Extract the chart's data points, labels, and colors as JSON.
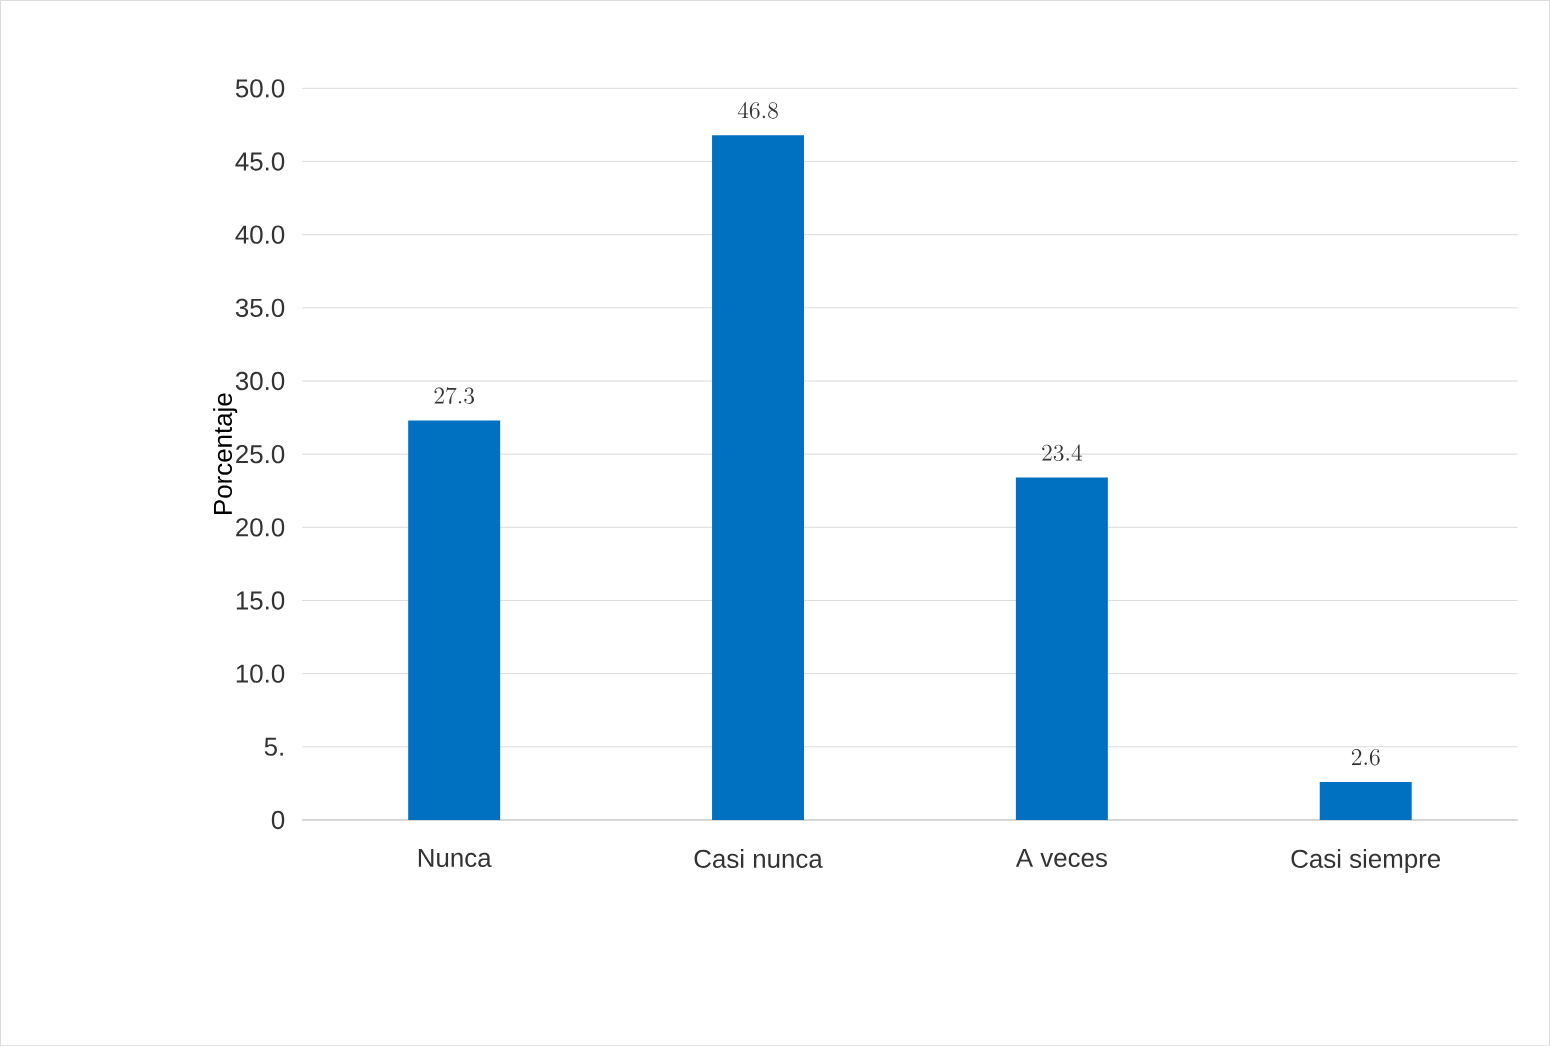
{
  "chart_data": {
    "type": "bar",
    "ylabel": "Porcentaje",
    "categories": [
      "Nunca",
      "Casi nunca",
      "A veces",
      "Casi siempre"
    ],
    "values": [
      27.3,
      46.8,
      23.4,
      2.6
    ],
    "color": "#0070c0",
    "ylim": [
      0,
      50
    ],
    "yticks": [
      {
        "value": 0,
        "label": "0"
      },
      {
        "value": 5,
        "label": "5."
      },
      {
        "value": 10,
        "label": "10.0"
      },
      {
        "value": 15,
        "label": "15.0"
      },
      {
        "value": 20,
        "label": "20.0"
      },
      {
        "value": 25,
        "label": "25.0"
      },
      {
        "value": 30,
        "label": "30.0"
      },
      {
        "value": 35,
        "label": "35.0"
      },
      {
        "value": 40,
        "label": "40.0"
      },
      {
        "value": 45,
        "label": "45.0"
      },
      {
        "value": 50,
        "label": "50.0"
      }
    ],
    "grid": "y",
    "data_labels": true
  }
}
